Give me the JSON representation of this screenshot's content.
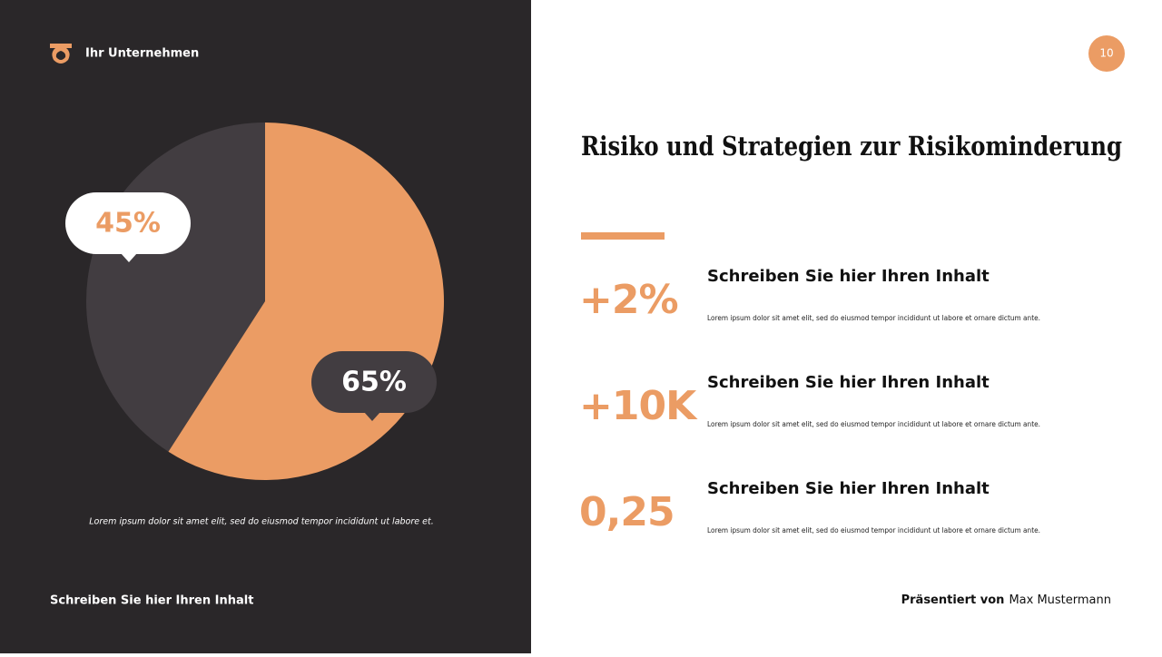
{
  "header": {
    "company": "Ihr Unternehmen",
    "page": "10"
  },
  "chart_data": {
    "type": "pie",
    "values": [
      45,
      65
    ],
    "value_labels": [
      "45%",
      "65%"
    ],
    "colors": [
      "#423d41",
      "#eb9c64"
    ],
    "caption": "Lorem ipsum dolor sit amet elit, sed do eiusmod tempor incididunt ut labore et."
  },
  "main": {
    "title": "Risiko und Strategien zur Risikominderung",
    "items": [
      {
        "stat": "+2%",
        "heading": "Schreiben Sie hier Ihren Inhalt",
        "text": "Lorem ipsum dolor sit amet elit, sed do eiusmod tempor incididunt ut labore et ornare dictum ante."
      },
      {
        "stat": "+10K",
        "heading": "Schreiben Sie hier Ihren Inhalt",
        "text": "Lorem ipsum dolor sit amet elit, sed do eiusmod tempor incididunt ut labore et ornare dictum ante."
      },
      {
        "stat": "0,25",
        "heading": "Schreiben Sie hier Ihren Inhalt",
        "text": "Lorem ipsum dolor sit amet elit, sed do eiusmod tempor incididunt ut labore et ornare dictum ante."
      }
    ]
  },
  "footer": {
    "left": "Schreiben Sie hier Ihren Inhalt",
    "presented_label": "Präsentiert von",
    "presenter": "Max Mustermann"
  }
}
